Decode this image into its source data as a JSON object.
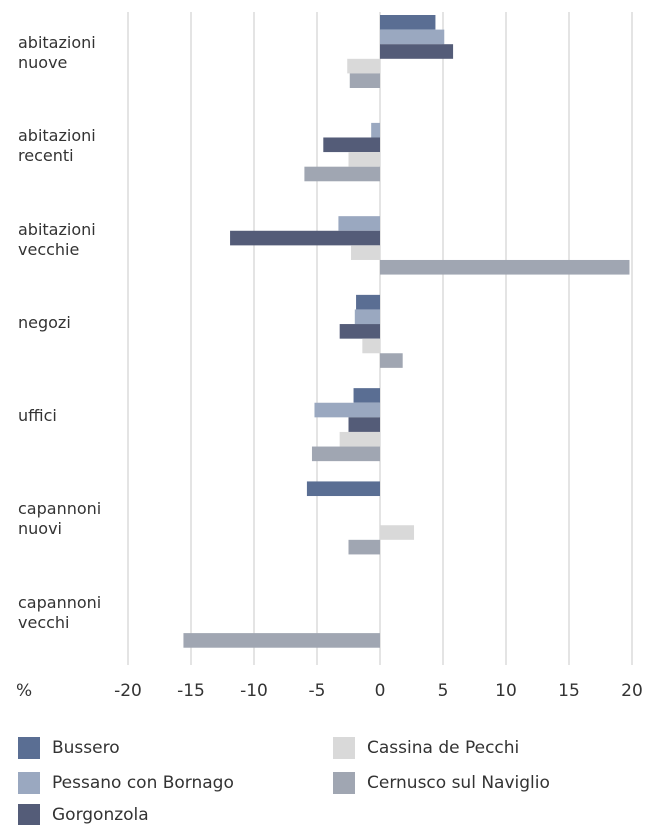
{
  "chart_data": {
    "type": "hbar",
    "x_label": "%",
    "categories": [
      "abitazioni nuove",
      "abitazioni recenti",
      "abitazioni vecchie",
      "negozi",
      "uffici",
      "capannoni nuovi",
      "capannoni vecchi"
    ],
    "series": [
      {
        "name": "Bussero",
        "color": "#5a6e93",
        "values": [
          4.4,
          null,
          null,
          -1.9,
          -2.1,
          -5.8,
          null
        ]
      },
      {
        "name": "Pessano con Bornago",
        "color": "#9aa8c0",
        "values": [
          5.1,
          -0.7,
          -3.3,
          -2.0,
          -5.2,
          null,
          null
        ]
      },
      {
        "name": "Gorgonzola",
        "color": "#545c78",
        "values": [
          5.8,
          -4.5,
          -11.9,
          -3.2,
          -2.5,
          null,
          null
        ]
      },
      {
        "name": "Cassina de Pecchi",
        "color": "#d9d9d9",
        "values": [
          -2.6,
          -2.5,
          -2.3,
          -1.4,
          -3.2,
          2.7,
          null
        ]
      },
      {
        "name": "Cernusco sul Naviglio",
        "color": "#a0a6b2",
        "values": [
          -2.4,
          -6.0,
          19.8,
          1.8,
          -5.4,
          -2.5,
          -15.6
        ]
      }
    ],
    "xlim": [
      -20,
      20
    ],
    "xticks": [
      -20,
      -15,
      -10,
      -5,
      0,
      5,
      10,
      15,
      20
    ],
    "grid": true
  }
}
